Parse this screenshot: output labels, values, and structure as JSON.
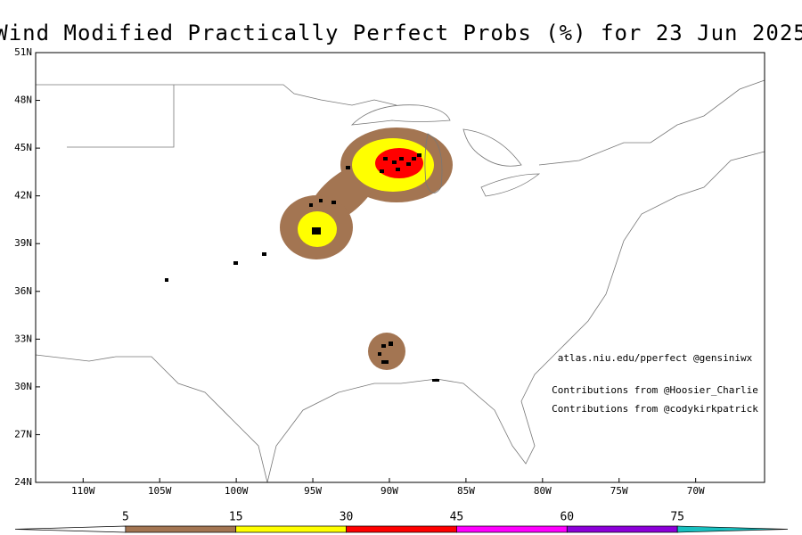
{
  "title": "Wind Modified Practically Perfect Probs (%) for 23 Jun 2025",
  "map": {
    "lonlim": [
      -113.1,
      -65.5
    ],
    "latlim": [
      24,
      51
    ],
    "lat_ticks": [
      {
        "value": 51,
        "label": "51N"
      },
      {
        "value": 48,
        "label": "48N"
      },
      {
        "value": 45,
        "label": "45N"
      },
      {
        "value": 42,
        "label": "42N"
      },
      {
        "value": 39,
        "label": "39N"
      },
      {
        "value": 36,
        "label": "36N"
      },
      {
        "value": 33,
        "label": "33N"
      },
      {
        "value": 30,
        "label": "30N"
      },
      {
        "value": 27,
        "label": "27N"
      },
      {
        "value": 24,
        "label": "24N"
      }
    ],
    "lon_ticks": [
      {
        "value": -110,
        "label": "110W"
      },
      {
        "value": -105,
        "label": "105W"
      },
      {
        "value": -100,
        "label": "100W"
      },
      {
        "value": -95,
        "label": "95W"
      },
      {
        "value": -90,
        "label": "90W"
      },
      {
        "value": -85,
        "label": "85W"
      },
      {
        "value": -80,
        "label": "80W"
      },
      {
        "value": -75,
        "label": "75W"
      },
      {
        "value": -70,
        "label": "70W"
      }
    ]
  },
  "credits": [
    "atlas.niu.edu/pperfect @gensiniwx",
    "Contributions from @Hoosier_Charlie",
    "Contributions from @codykirkpatrick"
  ],
  "colorbar": {
    "levels": [
      5,
      15,
      30,
      45,
      60,
      75
    ],
    "colors": [
      "#ffffff",
      "#a37552",
      "#ffff00",
      "#ff0000",
      "#ff00ff",
      "#8c00d9",
      "#19c0c0"
    ]
  }
}
